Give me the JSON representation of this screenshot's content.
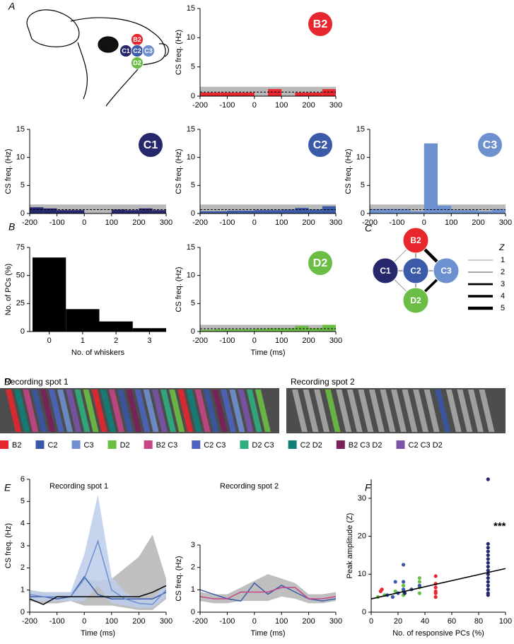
{
  "panel_labels": [
    "A",
    "B",
    "C",
    "D",
    "E",
    "F"
  ],
  "whisker_map": {
    "labels": [
      "B2",
      "C1",
      "C2",
      "C3",
      "D2"
    ],
    "colors": [
      "#e8262e",
      "#27276e",
      "#3b5aa8",
      "#6d90cf",
      "#6cbd45"
    ]
  },
  "network": {
    "nodes": [
      {
        "label": "B2",
        "color": "#e8262e"
      },
      {
        "label": "C1",
        "color": "#27276e"
      },
      {
        "label": "C2",
        "color": "#3b5aa8"
      },
      {
        "label": "C3",
        "color": "#6d90cf"
      },
      {
        "label": "D2",
        "color": "#6cbd45"
      }
    ],
    "edges": [
      {
        "from": 0,
        "to": 1,
        "z": 1
      },
      {
        "from": 0,
        "to": 2,
        "z": 1
      },
      {
        "from": 0,
        "to": 3,
        "z": 5
      },
      {
        "from": 1,
        "to": 2,
        "z": 2
      },
      {
        "from": 2,
        "to": 3,
        "z": 2
      },
      {
        "from": 1,
        "to": 4,
        "z": 1
      },
      {
        "from": 2,
        "to": 4,
        "z": 1
      },
      {
        "from": 3,
        "to": 4,
        "z": 4
      },
      {
        "from": 0,
        "to": 4,
        "z": 2
      }
    ],
    "legend_title": "Z",
    "legend_z": [
      1,
      2,
      3,
      4,
      5
    ]
  },
  "recording": {
    "titles": [
      "Recording spot 1",
      "Recording spot 2"
    ],
    "legend": [
      {
        "label": "B2",
        "color": "#e8262e"
      },
      {
        "label": "C2",
        "color": "#3a56a6"
      },
      {
        "label": "C3",
        "color": "#6f8fd0"
      },
      {
        "label": "D2",
        "color": "#6dbf44"
      },
      {
        "label": "B2 C3",
        "color": "#c54585"
      },
      {
        "label": "C2 C3",
        "color": "#4e64c0"
      },
      {
        "label": "D2 C3",
        "color": "#2fae7e"
      },
      {
        "label": "C2 D2",
        "color": "#0f7f78"
      },
      {
        "label": "B2 C3 D2",
        "color": "#7a2059"
      },
      {
        "label": "C2 C3 D2",
        "color": "#7a53a8"
      }
    ]
  },
  "chart_data": [
    {
      "type": "histogram",
      "badge": "B2",
      "badge_color": "#e8262e",
      "color": "#e8262e",
      "ylabel": "CS freq. (Hz)",
      "bins": [
        -200,
        -150,
        -100,
        -50,
        0,
        50,
        100,
        150,
        200,
        250,
        300
      ],
      "values": [
        0.6,
        0.6,
        0.6,
        0.6,
        0,
        1.2,
        0,
        0.6,
        0.6,
        1.2
      ],
      "xlim": [
        -200,
        300
      ],
      "xticks": [
        -200,
        -100,
        0,
        100,
        200,
        300
      ],
      "ylim": [
        0,
        15
      ],
      "yticks": [
        0,
        5,
        10,
        15
      ],
      "band": [
        0,
        1.6
      ],
      "baseline": 0.7
    },
    {
      "type": "histogram",
      "badge": "C1",
      "badge_color": "#27276e",
      "color": "#27276e",
      "ylabel": "CS freq. (Hz)",
      "bins": [
        -200,
        -150,
        -100,
        -50,
        0,
        50,
        100,
        150,
        200,
        250,
        300
      ],
      "values": [
        1.1,
        0.9,
        0.6,
        0.6,
        0,
        0,
        0.7,
        0.6,
        0.9,
        0.6
      ],
      "xlim": [
        -200,
        300
      ],
      "xticks": [
        -200,
        -100,
        0,
        100,
        200,
        300
      ],
      "ylim": [
        0,
        15
      ],
      "yticks": [
        0,
        5,
        10,
        15
      ],
      "band": [
        0,
        1.6
      ],
      "baseline": 0.7
    },
    {
      "type": "histogram",
      "badge": "C2",
      "badge_color": "#3b5aa8",
      "color": "#3b5aa8",
      "ylabel": "CS freq. (Hz)",
      "bins": [
        -200,
        -150,
        -100,
        -50,
        0,
        50,
        100,
        150,
        200,
        250,
        300
      ],
      "values": [
        0.4,
        0.4,
        0.5,
        0.5,
        0.6,
        0.6,
        0.7,
        1.0,
        0.7,
        1.3
      ],
      "xlim": [
        -200,
        300
      ],
      "xticks": [
        -200,
        -100,
        0,
        100,
        200,
        300
      ],
      "ylim": [
        0,
        15
      ],
      "yticks": [
        0,
        5,
        10,
        15
      ],
      "band": [
        0,
        1.6
      ],
      "baseline": 0.7
    },
    {
      "type": "histogram",
      "badge": "C3",
      "badge_color": "#6d90cf",
      "color": "#6d90cf",
      "ylabel": "CS freq. (Hz)",
      "bins": [
        -200,
        -150,
        -100,
        -50,
        0,
        50,
        100,
        150,
        200,
        250,
        300
      ],
      "values": [
        0.8,
        0.8,
        0.8,
        0.4,
        12.5,
        1.4,
        0.6,
        0.6,
        0.4,
        0.8
      ],
      "xlim": [
        -200,
        300
      ],
      "xticks": [
        -200,
        -100,
        0,
        100,
        200,
        300
      ],
      "ylim": [
        0,
        15
      ],
      "yticks": [
        0,
        5,
        10,
        15
      ],
      "band": [
        0,
        1.6
      ],
      "baseline": 0.7
    },
    {
      "type": "histogram",
      "badge": "D2",
      "badge_color": "#6cbd45",
      "color": "#6cbd45",
      "ylabel": "CS freq. (Hz)",
      "xlabel": "Time (ms)",
      "bins": [
        -200,
        -150,
        -100,
        -50,
        0,
        50,
        100,
        150,
        200,
        250,
        300
      ],
      "values": [
        0.3,
        0.4,
        0.4,
        0.4,
        0.5,
        0.6,
        0.6,
        1.0,
        0.6,
        1.2
      ],
      "xlim": [
        -200,
        300
      ],
      "xticks": [
        -200,
        -100,
        0,
        100,
        200,
        300
      ],
      "ylim": [
        0,
        15
      ],
      "yticks": [
        0,
        5,
        10,
        15
      ],
      "band": [
        0,
        1.2
      ],
      "baseline": 0.5
    },
    {
      "type": "bar",
      "ylabel": "No. of PCs (%)",
      "xlabel": "No. of whiskers",
      "color": "#000000",
      "categories": [
        "0",
        "1",
        "2",
        "3"
      ],
      "values": [
        66,
        20,
        9,
        3
      ],
      "ylim": [
        0,
        75
      ],
      "yticks": [
        0,
        25,
        50,
        75
      ]
    },
    {
      "type": "line",
      "title": "Recording spot 1",
      "ylabel": "CS freq. (Hz)",
      "xlabel": "Time (ms)",
      "x": [
        -200,
        -150,
        -100,
        -50,
        0,
        50,
        100,
        150,
        200,
        250,
        300
      ],
      "bands": [
        {
          "color": "#b4b4b4",
          "upper": [
            1.0,
            0.9,
            0.9,
            0.9,
            1.5,
            1.4,
            1.5,
            2.0,
            2.5,
            3.5,
            1.5
          ],
          "lower": [
            0.5,
            0.4,
            0.4,
            0.5,
            0.3,
            0.3,
            0.3,
            0.2,
            0.1,
            0.1,
            0.6
          ]
        },
        {
          "color": "#bcccea",
          "upper": [
            1.0,
            0.9,
            0.9,
            0.9,
            2.6,
            5.3,
            1.6,
            0.9,
            0.6,
            0.6,
            1.3
          ],
          "lower": [
            0.5,
            0.5,
            0.5,
            0.5,
            0.5,
            1.2,
            0.4,
            0.3,
            0.2,
            0.2,
            0.7
          ]
        }
      ],
      "series": [
        {
          "color": "#3b5aa8",
          "values": [
            0.7,
            0.7,
            0.6,
            0.7,
            1.6,
            0.8,
            0.6,
            0.6,
            0.6,
            0.6,
            0.9
          ]
        },
        {
          "color": "#6d90cf",
          "values": [
            0.8,
            0.7,
            0.7,
            0.7,
            1.5,
            3.2,
            1.0,
            0.6,
            0.4,
            0.35,
            1.0
          ]
        },
        {
          "color": "#000000",
          "values": [
            0.6,
            0.35,
            0.7,
            0.7,
            0.7,
            0.7,
            0.7,
            0.7,
            0.7,
            0.9,
            1.2
          ]
        }
      ],
      "xlim": [
        -200,
        300
      ],
      "xticks": [
        -200,
        -100,
        0,
        100,
        200,
        300
      ],
      "ylim": [
        0,
        6
      ],
      "yticks": [
        0,
        1,
        2,
        3,
        4,
        5,
        6
      ]
    },
    {
      "type": "line",
      "title": "Recording spot 2",
      "ylabel": "CS freq. (Hz)",
      "xlabel": "Time (ms)",
      "x": [
        -200,
        -150,
        -100,
        -50,
        0,
        50,
        100,
        150,
        200,
        250,
        300
      ],
      "bands": [
        {
          "color": "#b4b4b4",
          "upper": [
            0.9,
            0.8,
            0.8,
            1.1,
            1.4,
            1.7,
            1.5,
            1.3,
            0.8,
            0.8,
            0.9
          ],
          "lower": [
            0.5,
            0.4,
            0.4,
            0.5,
            0.5,
            0.5,
            0.7,
            0.6,
            0.4,
            0.4,
            0.5
          ]
        }
      ],
      "series": [
        {
          "color": "#3b5aa8",
          "values": [
            1.0,
            0.8,
            0.6,
            0.5,
            1.3,
            0.8,
            1.2,
            0.9,
            0.6,
            0.5,
            0.6
          ]
        },
        {
          "color": "#c54585",
          "values": [
            0.7,
            0.6,
            0.6,
            0.9,
            0.9,
            0.9,
            1.1,
            1.1,
            0.6,
            0.6,
            0.7
          ]
        }
      ],
      "xlim": [
        -200,
        300
      ],
      "xticks": [
        -200,
        -100,
        0,
        100,
        200,
        300
      ],
      "ylim": [
        0,
        3
      ],
      "yticks": [
        0,
        1,
        2,
        3
      ]
    },
    {
      "type": "scatter",
      "ylabel": "Peak amplitude (Z)",
      "xlabel": "No. of responsive PCs (%)",
      "annotation": "***",
      "series": [
        {
          "color": "#e8262e",
          "x": [
            7,
            8,
            48,
            48,
            48,
            48,
            48,
            48
          ],
          "y": [
            5.5,
            6,
            4,
            5,
            5.5,
            6.5,
            7.5,
            9.5
          ]
        },
        {
          "color": "#6cbd45",
          "x": [
            5,
            10,
            18,
            24,
            24,
            24,
            36,
            36,
            36,
            36
          ],
          "y": [
            4,
            4.5,
            5.5,
            4.5,
            5.5,
            7,
            5,
            6.5,
            8,
            9
          ]
        },
        {
          "color": "#3b5aa8",
          "x": [
            12,
            16,
            18,
            20,
            24,
            24,
            24,
            30,
            36
          ],
          "y": [
            4.5,
            4,
            8,
            5,
            6,
            8,
            12.5,
            6,
            7
          ]
        },
        {
          "color": "#27276e",
          "x": [
            25,
            87,
            87,
            87,
            87,
            87,
            87,
            87,
            87,
            87,
            87,
            87,
            87,
            87,
            87,
            87,
            87
          ],
          "y": [
            5,
            4.5,
            5,
            6,
            7,
            8,
            9,
            10,
            11,
            12,
            13,
            14,
            15,
            16,
            17,
            18,
            35
          ]
        }
      ],
      "fit": {
        "x": [
          0,
          100
        ],
        "y": [
          3.5,
          11.5
        ]
      },
      "xlim": [
        0,
        100
      ],
      "xticks": [
        0,
        20,
        40,
        60,
        80,
        100
      ],
      "ylim": [
        0,
        35
      ],
      "yticks": [
        0,
        10,
        20,
        30
      ]
    }
  ]
}
